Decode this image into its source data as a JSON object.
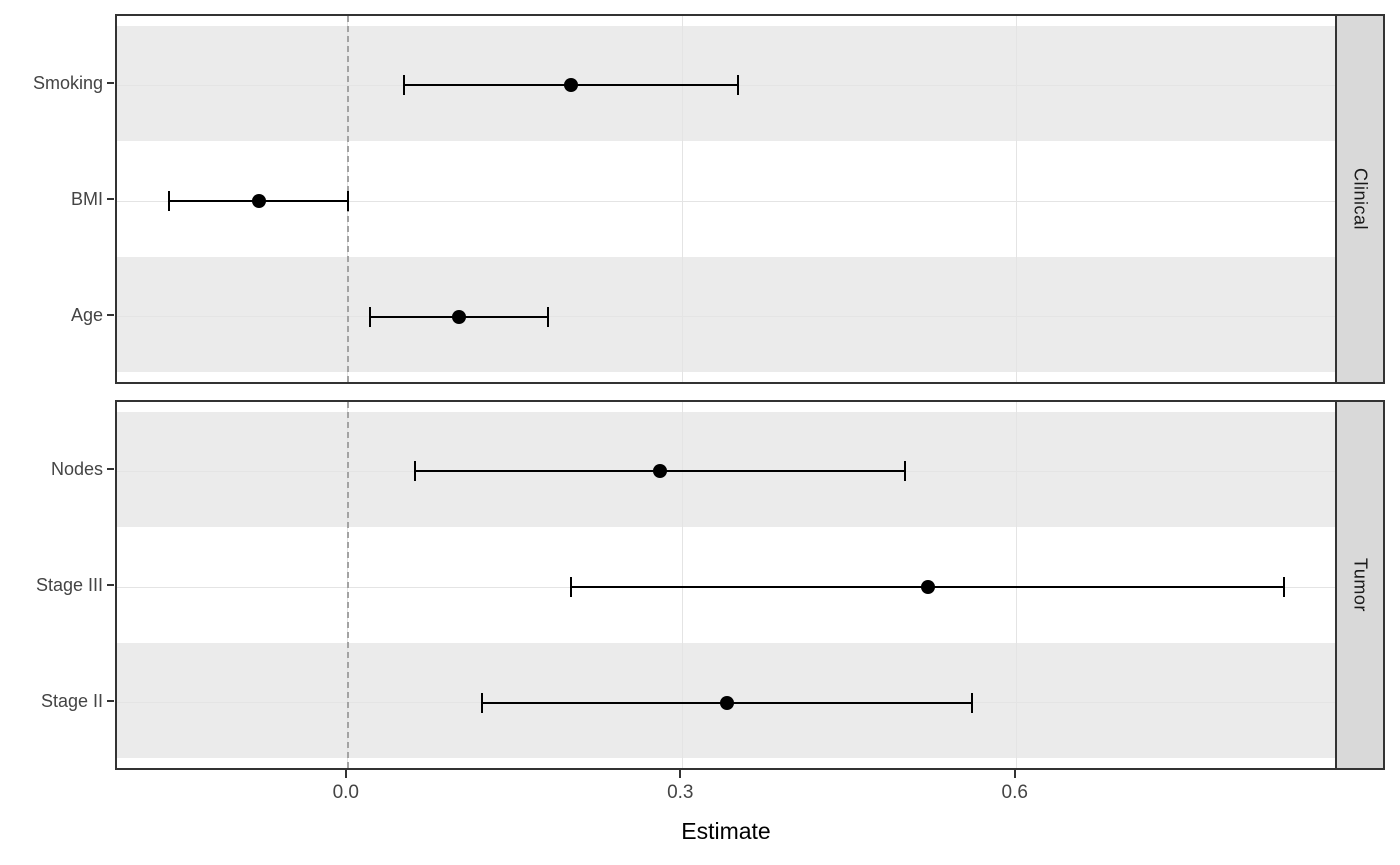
{
  "chart_data": {
    "type": "forest",
    "title": "",
    "xlabel": "Estimate",
    "x_ticks": [
      0.0,
      0.3,
      0.6
    ],
    "x_tick_labels": [
      "0.0",
      "0.3",
      "0.6"
    ],
    "xlim": [
      -0.207,
      0.889
    ],
    "reference_line": 0,
    "grid": "on",
    "facets": [
      {
        "label": "Clinical",
        "rows": [
          {
            "label": "Smoking",
            "estimate": 0.2,
            "ci_low": 0.05,
            "ci_high": 0.35
          },
          {
            "label": "BMI",
            "estimate": -0.08,
            "ci_low": -0.16,
            "ci_high": 0.0
          },
          {
            "label": "Age",
            "estimate": 0.1,
            "ci_low": 0.02,
            "ci_high": 0.18
          }
        ]
      },
      {
        "label": "Tumor",
        "rows": [
          {
            "label": "Nodes",
            "estimate": 0.28,
            "ci_low": 0.06,
            "ci_high": 0.5
          },
          {
            "label": "Stage III",
            "estimate": 0.52,
            "ci_low": 0.2,
            "ci_high": 0.84
          },
          {
            "label": "Stage II",
            "estimate": 0.34,
            "ci_low": 0.12,
            "ci_high": 0.56
          }
        ]
      }
    ],
    "colors": {
      "stripe": "#ebebeb",
      "panel_bg": "#ffffff",
      "strip_bg": "#d9d9d9",
      "panel_border": "#333333",
      "gridline": "#e4e4e4",
      "reference_line": "#a3a3a3",
      "point": "#000000",
      "error_bar": "#000000",
      "axis_text": "#444444",
      "axis_title": "#000000"
    }
  }
}
